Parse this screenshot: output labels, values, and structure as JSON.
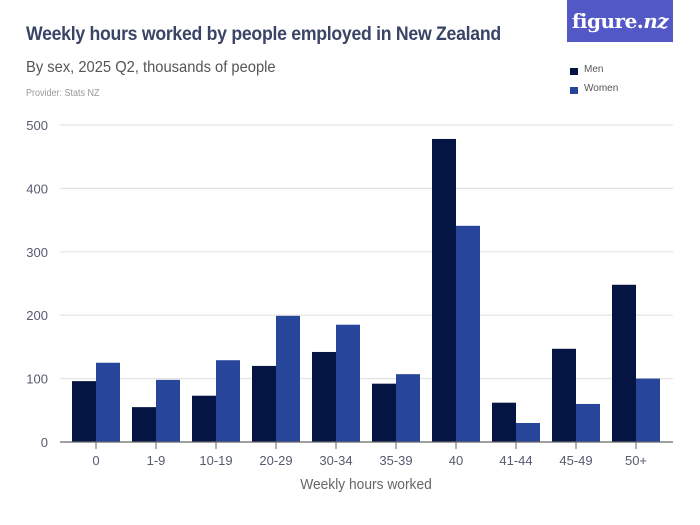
{
  "header": {
    "title": "Weekly hours worked by people employed in New Zealand",
    "subtitle": "By sex, 2025 Q2, thousands of people",
    "provider": "Provider: Stats NZ",
    "logo": {
      "main": "figure.",
      "accent": "nz"
    }
  },
  "legend": [
    {
      "label": "Men",
      "color": "#041543"
    },
    {
      "label": "Women",
      "color": "#27459b"
    }
  ],
  "colors": {
    "men": "#041543",
    "women": "#27459b",
    "logo_bg": "#5258c6",
    "gridline": "#e3e3e3",
    "axis": "#666666",
    "tick_text": "#555b70"
  },
  "chart_data": {
    "type": "bar",
    "title": "Weekly hours worked by people employed in New Zealand",
    "subtitle": "By sex, 2025 Q2, thousands of people",
    "xlabel": "Weekly hours worked",
    "ylabel": "",
    "ylim": [
      0,
      500
    ],
    "yticks": [
      0,
      100,
      200,
      300,
      400,
      500
    ],
    "grid": true,
    "legend_position": "top-right",
    "categories": [
      "0",
      "1-9",
      "10-19",
      "20-29",
      "30-34",
      "35-39",
      "40",
      "41-44",
      "45-49",
      "50+"
    ],
    "series": [
      {
        "name": "Men",
        "color": "#041543",
        "values": [
          96,
          55,
          73,
          120,
          142,
          92,
          478,
          62,
          147,
          248
        ]
      },
      {
        "name": "Women",
        "color": "#27459b",
        "values": [
          125,
          98,
          129,
          199,
          185,
          107,
          341,
          30,
          60,
          100
        ]
      }
    ]
  }
}
